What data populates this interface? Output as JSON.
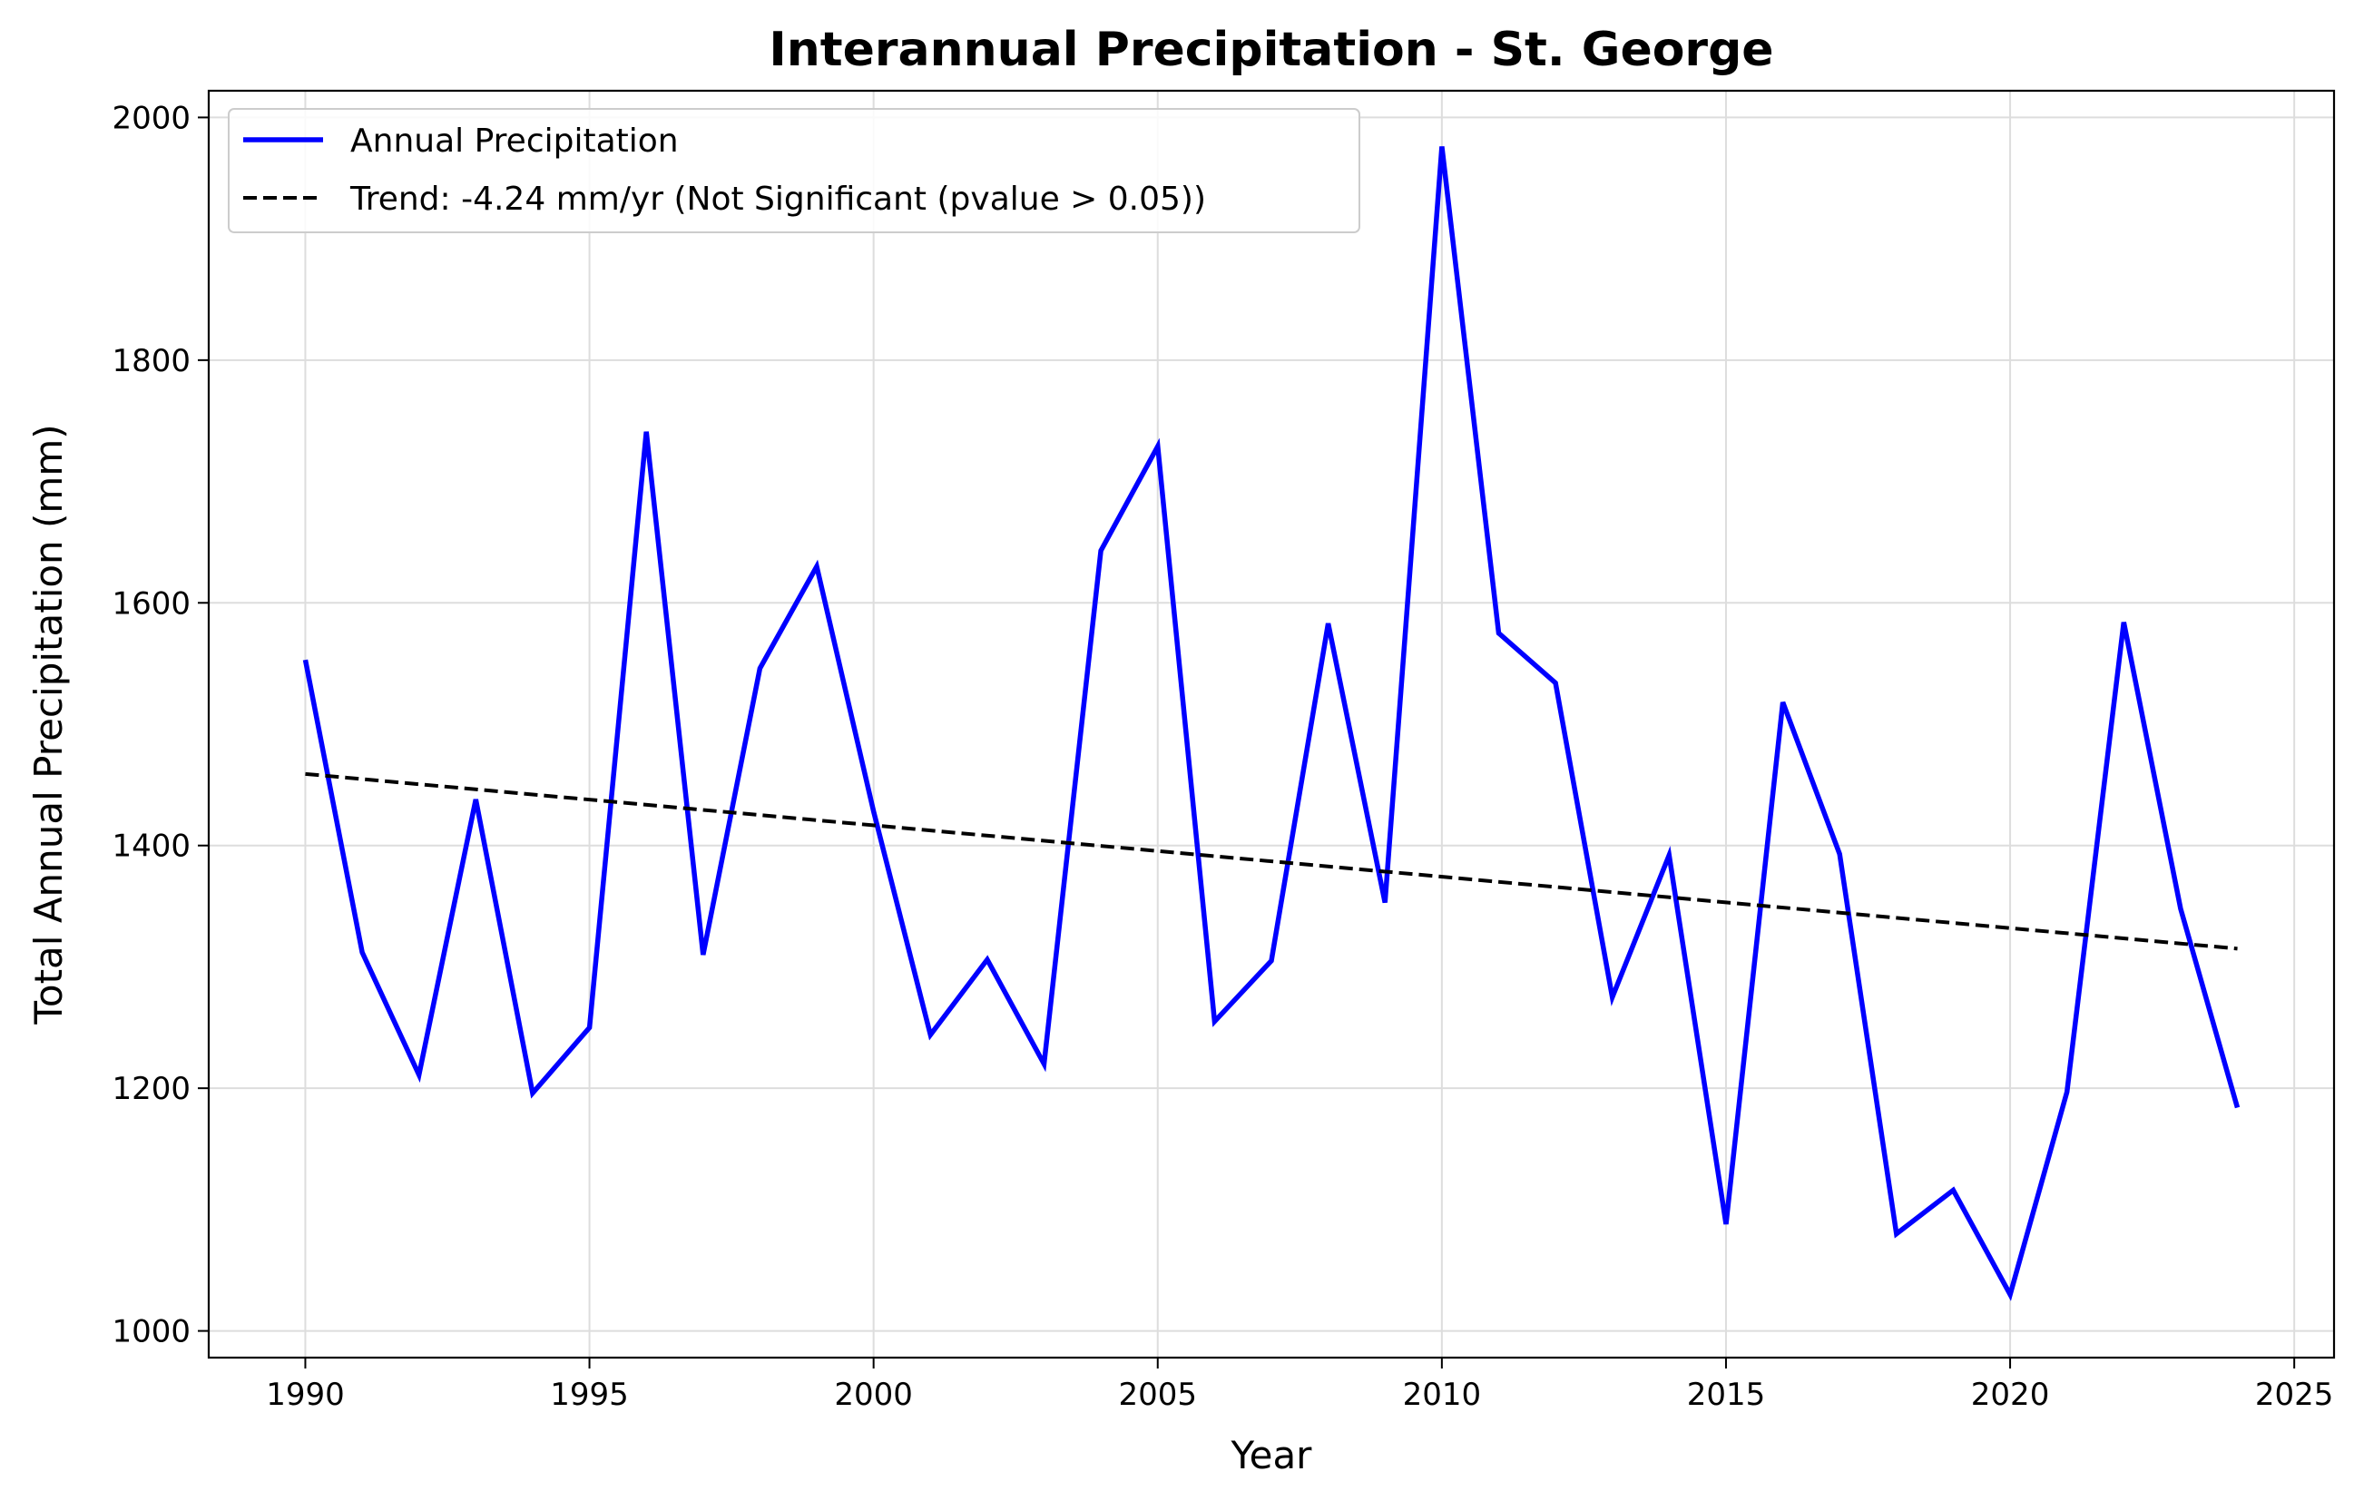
{
  "chart_data": {
    "type": "line",
    "title": "Interannual Precipitation - St. George",
    "xlabel": "Year",
    "ylabel": "Total Annual Precipitation (mm)",
    "xlim": [
      1988.3,
      2025.7
    ],
    "ylim": [
      978,
      2022
    ],
    "x_ticks": [
      1990,
      1995,
      2000,
      2005,
      2010,
      2015,
      2020,
      2025
    ],
    "y_ticks": [
      1000,
      1200,
      1400,
      1600,
      1800,
      2000
    ],
    "grid": true,
    "legend_position": "upper left",
    "x": [
      1990,
      1991,
      1992,
      1993,
      1994,
      1995,
      1996,
      1997,
      1998,
      1999,
      2000,
      2001,
      2002,
      2003,
      2004,
      2005,
      2006,
      2007,
      2008,
      2009,
      2010,
      2011,
      2012,
      2013,
      2014,
      2015,
      2016,
      2017,
      2018,
      2019,
      2020,
      2021,
      2022,
      2023,
      2024
    ],
    "series": [
      {
        "name": "Annual Precipitation",
        "style": "solid",
        "color": "#0000ff",
        "values": [
          1553,
          1312,
          1211,
          1438,
          1196,
          1250,
          1741,
          1310,
          1546,
          1630,
          1428,
          1244,
          1306,
          1220,
          1643,
          1729,
          1255,
          1305,
          1583,
          1353,
          1976,
          1575,
          1534,
          1275,
          1392,
          1088,
          1518,
          1393,
          1080,
          1116,
          1030,
          1197,
          1584,
          1348,
          1184
        ]
      },
      {
        "name": "Trend: -4.24 mm/yr (Not Significant (pvalue > 0.05))",
        "style": "dashed",
        "color": "#000000",
        "slope_per_year": -4.24,
        "values_endpoints": {
          "x": [
            1990,
            2024
          ],
          "y": [
            1459,
            1315
          ]
        }
      }
    ]
  }
}
